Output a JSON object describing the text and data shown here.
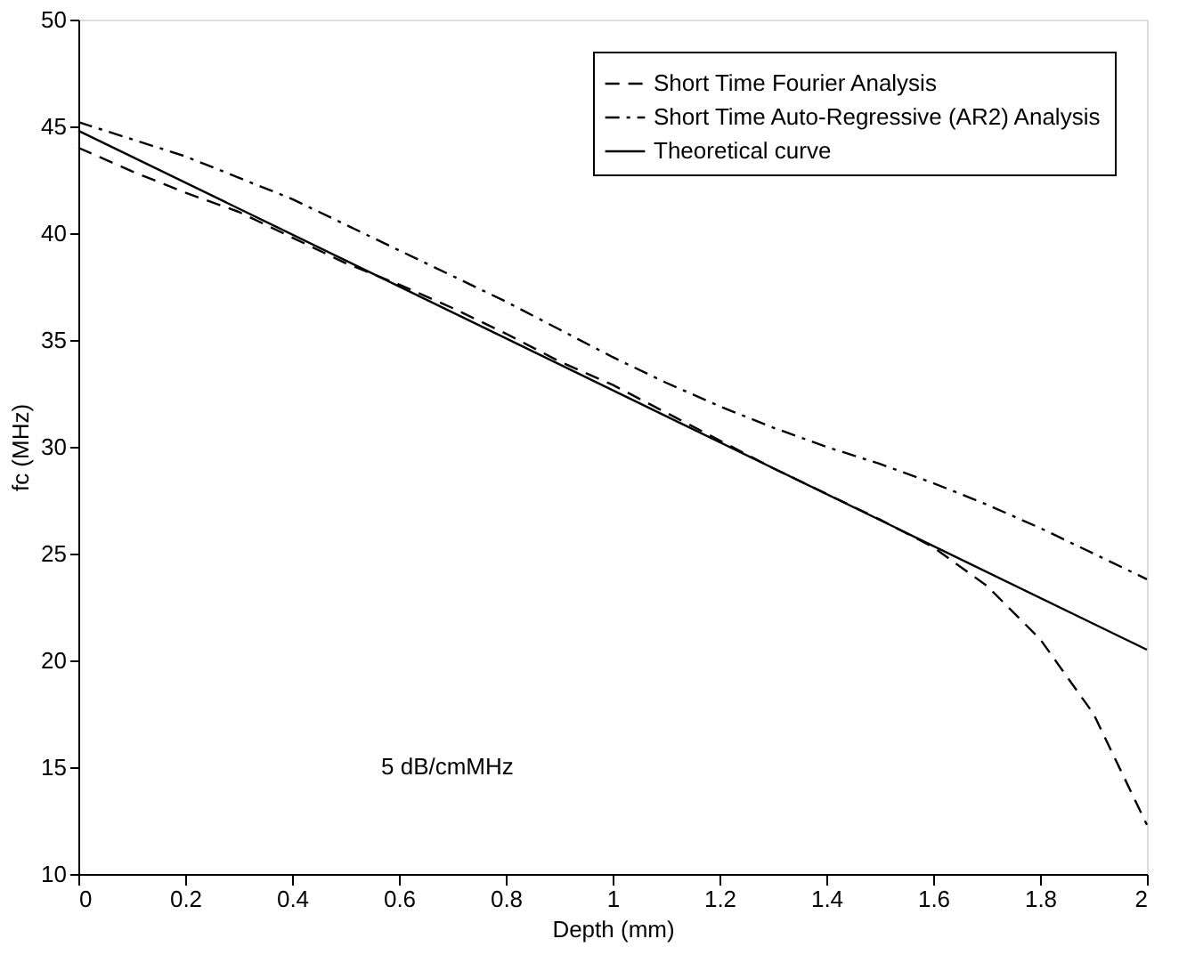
{
  "chart_data": {
    "type": "line",
    "xlabel": "Depth (mm)",
    "ylabel": "fc (MHz)",
    "x": [
      0,
      0.1,
      0.2,
      0.3,
      0.4,
      0.5,
      0.6,
      0.7,
      0.8,
      0.9,
      1.0,
      1.1,
      1.2,
      1.3,
      1.4,
      1.5,
      1.6,
      1.7,
      1.8,
      1.9,
      2.0
    ],
    "series": [
      {
        "name": "Short Time Fourier Analysis",
        "color": "#000000",
        "line_style": "dashed",
        "values": [
          44.0,
          42.9,
          41.9,
          41.0,
          39.8,
          38.6,
          37.6,
          36.5,
          35.3,
          34.0,
          32.9,
          31.6,
          30.3,
          29.0,
          27.8,
          26.6,
          25.3,
          23.5,
          21.0,
          17.5,
          12.3
        ]
      },
      {
        "name": "Short Time Auto-Regressive (AR2) Analysis",
        "color": "#000000",
        "line_style": "dashdot",
        "values": [
          45.2,
          44.4,
          43.6,
          42.6,
          41.6,
          40.4,
          39.2,
          38.0,
          36.8,
          35.5,
          34.2,
          33.0,
          31.9,
          30.9,
          30.0,
          29.2,
          28.3,
          27.3,
          26.2,
          25.0,
          23.8
        ]
      },
      {
        "name": "Theoretical curve",
        "color": "#000000",
        "line_style": "solid",
        "x": [
          0,
          2
        ],
        "values": [
          44.8,
          20.5
        ]
      }
    ],
    "xlim": [
      0,
      2
    ],
    "xticks": [
      0,
      0.2,
      0.4,
      0.6,
      0.8,
      1,
      1.2,
      1.4,
      1.6,
      1.8,
      2
    ],
    "ylim": [
      10,
      50
    ],
    "yticks": [
      10,
      15,
      20,
      25,
      30,
      35,
      40,
      45,
      50
    ],
    "grid": false,
    "legend": "top right",
    "annotations": [
      "5 dB/cmMHz"
    ]
  }
}
